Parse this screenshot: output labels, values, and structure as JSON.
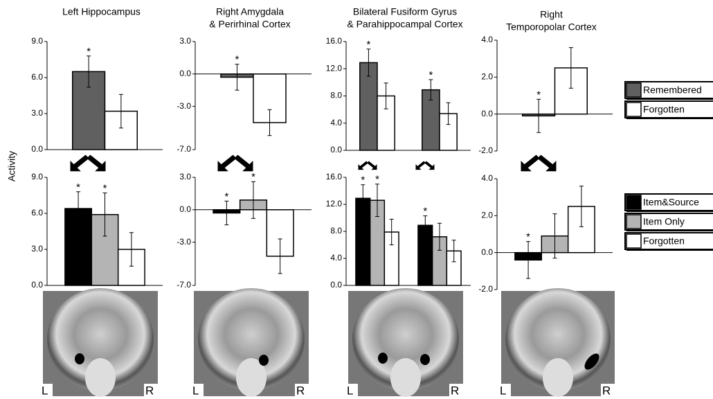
{
  "y_axis_label": "Activity",
  "images": [
    {
      "left": "L",
      "right": "R"
    },
    {
      "left": "L",
      "right": "R"
    },
    {
      "left": "L",
      "right": "R"
    },
    {
      "left": "L",
      "right": "R"
    }
  ],
  "legends": [
    {
      "items": [
        {
          "name": "Remembered",
          "color": "#606060"
        },
        {
          "name": "Forgotten",
          "color": "#ffffff"
        }
      ]
    },
    {
      "items": [
        {
          "name": "Item&Source",
          "color": "#000000"
        },
        {
          "name": "Item Only",
          "color": "#b4b4b4"
        },
        {
          "name": "Forgotten",
          "color": "#ffffff"
        }
      ]
    }
  ],
  "chart_data": [
    {
      "type": "bar",
      "title": [
        "Left Hippocampus"
      ],
      "categories": [
        null
      ],
      "ylim": [
        0,
        9
      ],
      "yticks": [
        {
          "value": 0,
          "label": "0.0"
        },
        {
          "value": 3,
          "label": "3.0"
        },
        {
          "value": 6,
          "label": "6.0"
        },
        {
          "value": 9,
          "label": "9.0"
        }
      ],
      "series": [
        {
          "color": "#606060",
          "values": [
            6.5
          ],
          "errors": [
            1.3
          ],
          "markers": [
            "*"
          ]
        },
        {
          "color": "#ffffff",
          "values": [
            3.2
          ],
          "errors": [
            1.4
          ],
          "markers": [
            null
          ]
        }
      ]
    },
    {
      "type": "bar",
      "title": [
        "Right Amygdala",
        "& Perirhinal Cortex"
      ],
      "categories": [
        null
      ],
      "ylim": [
        -7,
        3
      ],
      "yticks": [
        {
          "value": -7,
          "label": "-7.0"
        },
        {
          "value": -3,
          "label": "-3.0"
        },
        {
          "value": 0,
          "label": "0.0"
        },
        {
          "value": 3,
          "label": "3.0"
        }
      ],
      "series": [
        {
          "color": "#606060",
          "values": [
            -0.3
          ],
          "errors": [
            1.2
          ],
          "markers": [
            "*"
          ]
        },
        {
          "color": "#ffffff",
          "values": [
            -4.5
          ],
          "errors": [
            1.2
          ],
          "markers": [
            null
          ]
        }
      ]
    },
    {
      "type": "bar",
      "title": [
        "Bilateral Fusiform Gyrus",
        "& Parahippocampal Cortex"
      ],
      "categories": [
        null,
        null
      ],
      "ylim": [
        0,
        16
      ],
      "yticks": [
        {
          "value": 0,
          "label": "0.0"
        },
        {
          "value": 4,
          "label": "4.0"
        },
        {
          "value": 8,
          "label": "8.0"
        },
        {
          "value": 12,
          "label": "12.0"
        },
        {
          "value": 16,
          "label": "16.0"
        }
      ],
      "series": [
        {
          "color": "#606060",
          "values": [
            12.9,
            8.9
          ],
          "errors": [
            2.0,
            1.5
          ],
          "markers": [
            "*",
            "*"
          ]
        },
        {
          "color": "#ffffff",
          "values": [
            8.0,
            5.4
          ],
          "errors": [
            1.9,
            1.6
          ],
          "markers": [
            null,
            null
          ]
        }
      ]
    },
    {
      "type": "bar",
      "title": [
        "Right",
        "Temporopolar Cortex"
      ],
      "categories": [
        null
      ],
      "ylim": [
        -2,
        4
      ],
      "yticks": [
        {
          "value": -2,
          "label": "-2.0"
        },
        {
          "value": 0,
          "label": "0.0"
        },
        {
          "value": 2,
          "label": "2.0"
        },
        {
          "value": 4,
          "label": "4.0"
        }
      ],
      "series": [
        {
          "color": "#606060",
          "values": [
            -0.1
          ],
          "errors": [
            0.9
          ],
          "markers": [
            "*"
          ]
        },
        {
          "color": "#ffffff",
          "values": [
            2.5
          ],
          "errors": [
            1.1
          ],
          "markers": [
            null
          ]
        }
      ]
    },
    {
      "type": "bar",
      "categories": [
        null
      ],
      "ylim": [
        0,
        9
      ],
      "yticks": [
        {
          "value": 0,
          "label": "0.0"
        },
        {
          "value": 3,
          "label": "3.0"
        },
        {
          "value": 6,
          "label": "6.0"
        },
        {
          "value": 9,
          "label": "9.0"
        }
      ],
      "series": [
        {
          "color": "#000000",
          "values": [
            6.4
          ],
          "errors": [
            1.4
          ],
          "markers": [
            "*"
          ]
        },
        {
          "color": "#b4b4b4",
          "values": [
            5.9
          ],
          "errors": [
            1.8
          ],
          "markers": [
            "*"
          ]
        },
        {
          "color": "#ffffff",
          "values": [
            3.0
          ],
          "errors": [
            1.4
          ],
          "markers": [
            null
          ]
        }
      ]
    },
    {
      "type": "bar",
      "categories": [
        null
      ],
      "ylim": [
        -7,
        3
      ],
      "yticks": [
        {
          "value": -7,
          "label": "-7.0"
        },
        {
          "value": -3,
          "label": "-3.0"
        },
        {
          "value": 0,
          "label": "0.0"
        },
        {
          "value": 3,
          "label": "3.0"
        }
      ],
      "series": [
        {
          "color": "#000000",
          "values": [
            -0.3
          ],
          "errors": [
            1.1
          ],
          "markers": [
            "*"
          ]
        },
        {
          "color": "#b4b4b4",
          "values": [
            0.9
          ],
          "errors": [
            1.7
          ],
          "markers": [
            "*"
          ]
        },
        {
          "color": "#ffffff",
          "values": [
            -4.3
          ],
          "errors": [
            1.6
          ],
          "markers": [
            null
          ]
        }
      ]
    },
    {
      "type": "bar",
      "categories": [
        null,
        null
      ],
      "ylim": [
        0,
        16
      ],
      "yticks": [
        {
          "value": 0,
          "label": "0.0"
        },
        {
          "value": 4,
          "label": "4.0"
        },
        {
          "value": 8,
          "label": "8.0"
        },
        {
          "value": 12,
          "label": "12.0"
        },
        {
          "value": 16,
          "label": "16.0"
        }
      ],
      "series": [
        {
          "color": "#000000",
          "values": [
            12.9,
            8.9
          ],
          "errors": [
            2.0,
            1.4
          ],
          "markers": [
            "*",
            "*"
          ]
        },
        {
          "color": "#b4b4b4",
          "values": [
            12.6,
            7.2
          ],
          "errors": [
            2.4,
            2.0
          ],
          "markers": [
            "*",
            null
          ]
        },
        {
          "color": "#ffffff",
          "values": [
            7.9,
            5.1
          ],
          "errors": [
            1.9,
            1.6
          ],
          "markers": [
            null,
            null
          ]
        }
      ]
    },
    {
      "type": "bar",
      "categories": [
        null
      ],
      "ylim": [
        -2,
        4
      ],
      "yticks": [
        {
          "value": -2,
          "label": "-2.0"
        },
        {
          "value": 0,
          "label": "0.0"
        },
        {
          "value": 2,
          "label": "2.0"
        },
        {
          "value": 4,
          "label": "4.0"
        }
      ],
      "series": [
        {
          "color": "#000000",
          "values": [
            -0.4
          ],
          "errors": [
            1.0
          ],
          "markers": [
            "*"
          ]
        },
        {
          "color": "#b4b4b4",
          "values": [
            0.9
          ],
          "errors": [
            1.2
          ],
          "markers": [
            null
          ]
        },
        {
          "color": "#ffffff",
          "values": [
            2.5
          ],
          "errors": [
            1.1
          ],
          "markers": [
            null
          ]
        }
      ]
    }
  ]
}
